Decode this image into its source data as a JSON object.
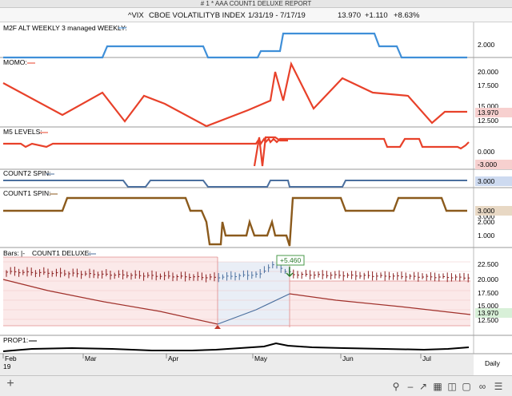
{
  "window": {
    "title": "# 1 *  AAA COUNT1 DELUXE REPORT"
  },
  "header": {
    "symbol": "^VIX",
    "name": "CBOE VOLATILITYB INDEX",
    "date_range": "1/31/19 - 7/17/19",
    "last": "13.970",
    "change": "+1.110",
    "change_pct": "+8.63%"
  },
  "panels": {
    "m2f": {
      "label": "M2F ALT WEEKLY 3 managed WEEKLY:",
      "ticks": [
        "2.000"
      ]
    },
    "momo": {
      "label": "MOMO:",
      "ticks": [
        "20.000",
        "17.500",
        "15.000",
        "12.500"
      ],
      "value_badge": "13.970"
    },
    "m5": {
      "label": "M5 LEVELS:",
      "ticks": [
        "0.000",
        "-2.500"
      ],
      "value_badge": "-3.000"
    },
    "count2": {
      "label": "COUNT2 SPIN:",
      "value_badge": "3.000"
    },
    "count1": {
      "label": "COUNT1 SPIN:",
      "ticks": [
        "3.000",
        "2.000",
        "1.000"
      ],
      "value_badge": "3.000"
    },
    "bars": {
      "label_left": "Bars:",
      "label_sep": "|-",
      "label": "COUNT1 DELUXE:",
      "ticks": [
        "22.500",
        "20.000",
        "17.500",
        "15.000",
        "12.500"
      ],
      "value_badge": "13.970",
      "callout": "+5.460"
    },
    "prop": {
      "label": "PROP1:"
    }
  },
  "time_axis": {
    "labels": [
      "Feb",
      "Mar",
      "Apr",
      "May",
      "Jun",
      "Jul"
    ],
    "year": "19",
    "interval": "Daily"
  },
  "toolbar": {
    "add_label": "+",
    "icons": [
      "search-icon",
      "zoom-out-icon",
      "chart-draw-icon",
      "grid-icon",
      "layout-icon",
      "window-icon",
      "link-icon",
      "menu-icon"
    ]
  },
  "colors": {
    "blue": "#3f8fd8",
    "red": "#e8412a",
    "brown": "#8b5a1c",
    "steel": "#4b6f9e",
    "maroon": "#a0302a",
    "black": "#000000"
  }
}
